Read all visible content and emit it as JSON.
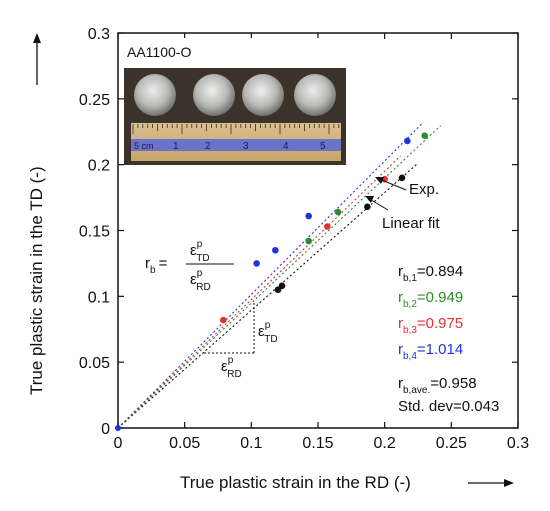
{
  "chart_data": {
    "type": "scatter",
    "xlabel": "True plastic strain in the RD (-)",
    "ylabel": "True plastic strain in the TD (-)",
    "xlim": [
      0,
      0.3
    ],
    "ylim": [
      0,
      0.3
    ],
    "x_ticks": [
      "0",
      "0.05",
      "0.1",
      "0.15",
      "0.2",
      "0.25",
      "0.3"
    ],
    "y_ticks": [
      "0",
      "0.05",
      "0.1",
      "0.15",
      "0.2",
      "0.25",
      "0.3"
    ],
    "grid": false,
    "inset_label": "AA1100-O",
    "ruler_label": "5 cm",
    "ruler_numbers": [
      "1",
      "2",
      "3",
      "4",
      "5"
    ],
    "series": [
      {
        "color": "#111111",
        "slope": 0.894,
        "x": [
          0.12,
          0.123,
          0.187,
          0.213
        ],
        "y": [
          0.105,
          0.108,
          0.168,
          0.19
        ]
      },
      {
        "color": "#2e8b2e",
        "slope": 0.949,
        "x": [
          0.143,
          0.165,
          0.23
        ],
        "y": [
          0.142,
          0.164,
          0.222
        ]
      },
      {
        "color": "#e8312e",
        "slope": 0.975,
        "x": [
          0.079,
          0.157,
          0.2
        ],
        "y": [
          0.082,
          0.153,
          0.189
        ]
      },
      {
        "color": "#2233dd",
        "slope": 1.014,
        "x": [
          0.104,
          0.118,
          0.143,
          0.217
        ],
        "y": [
          0.125,
          0.135,
          0.161,
          0.218
        ]
      }
    ],
    "origin_point": {
      "x": 0,
      "y": 0
    },
    "annotations": {
      "exp": "Exp.",
      "linear_fit": "Linear fit",
      "formula_lhs": "r",
      "formula_lhs_sub": "b",
      "formula_eq": "=",
      "eps": "ε",
      "sup_p": "p",
      "sub_td": "TD",
      "sub_rd": "RD"
    },
    "rvalues": [
      {
        "prefix": "r",
        "sub": "b,1",
        "value": "=0.894",
        "color": "#111111"
      },
      {
        "prefix": "r",
        "sub": "b,2",
        "value": "=0.949",
        "color": "#2e8b2e"
      },
      {
        "prefix": "r",
        "sub": "b,3",
        "value": "=0.975",
        "color": "#e8312e"
      },
      {
        "prefix": "r",
        "sub": "b,4",
        "value": "=1.014",
        "color": "#2233dd"
      },
      {
        "prefix": "r",
        "sub": "b,ave.",
        "value": "=0.958",
        "color": "#111111"
      }
    ],
    "std_dev": "Std. dev=0.043"
  }
}
